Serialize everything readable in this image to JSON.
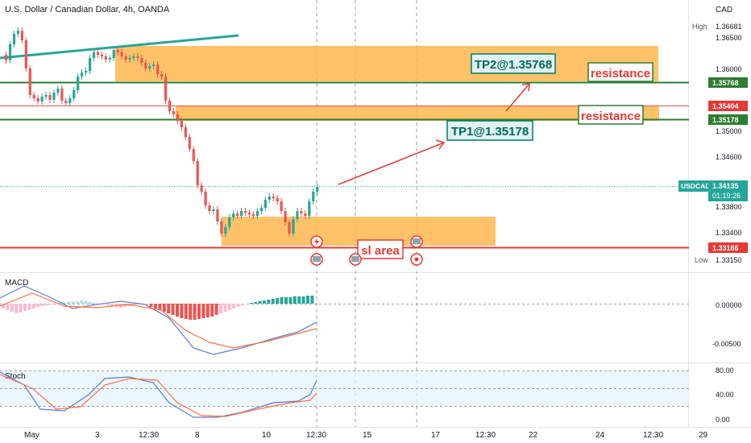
{
  "title": "U.S. Dollar / Canadian Dollar, 4h, OANDA",
  "currency": "CAD",
  "price_axis": {
    "ticks": [
      "1.36500",
      "1.36000",
      "1.35000",
      "1.34600",
      "1.33800",
      "1.33400"
    ],
    "high_label": "High",
    "high_value": "1.36681",
    "low_label": "Low",
    "low_value": "1.33150"
  },
  "price_tags": [
    {
      "value": "1.35768",
      "color": "#2e7d32"
    },
    {
      "value": "1.35404",
      "color": "#e53935"
    },
    {
      "value": "1.35178",
      "color": "#2e7d32"
    },
    {
      "value": "1.33166",
      "color": "#e53935"
    }
  ],
  "symbol_tag": {
    "symbol": "USDCAD",
    "price": "1.34135",
    "countdown": "01:19:26"
  },
  "annotations": {
    "tp2": "TP2@1.35768",
    "tp1": "TP1@1.35178",
    "resistance_top": "resistance",
    "resistance_mid": "resistance",
    "sl": "sl area"
  },
  "macd": {
    "title": "MACD",
    "ticks": [
      "0.00000",
      "-0.00500"
    ]
  },
  "stoch": {
    "title": "Stoch",
    "ticks": [
      "80.00",
      "40.00",
      "0.00"
    ]
  },
  "time_axis": {
    "labels": [
      "May",
      "3",
      "12:30",
      "8",
      "10",
      "12:30",
      "15",
      "17",
      "12:30",
      "22",
      "24",
      "12:30",
      "29"
    ]
  },
  "colors": {
    "bull": "#26a69a",
    "bear": "#ef5350",
    "zone": "#ffb74d",
    "support_green": "#2e7d32",
    "sl_red": "#e53935",
    "usdcad_tag": "#26a69a"
  },
  "chart_data": {
    "type": "candlestick",
    "x": [
      "May 1",
      "May 3",
      "May 8",
      "May 10",
      "May 15",
      "May 17",
      "May 22",
      "May 24",
      "May 29"
    ],
    "levels": [
      1.35768,
      1.35404,
      1.35178,
      1.33166
    ],
    "current_price": 1.34135,
    "high": 1.36681,
    "low": 1.3315,
    "zones": [
      {
        "from": 1.35768,
        "to": 1.3632
      },
      {
        "from": 1.35178,
        "to": 1.3545
      },
      {
        "from": 1.33166,
        "to": 1.337
      }
    ]
  }
}
